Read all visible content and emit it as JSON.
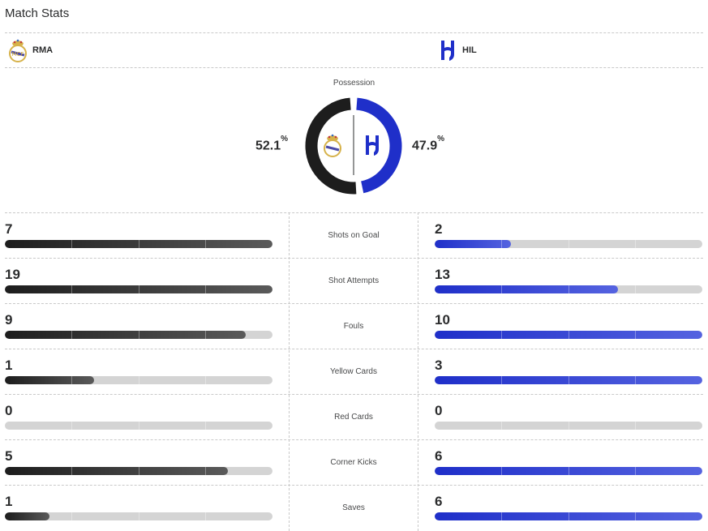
{
  "title": "Match Stats",
  "home": {
    "abbr": "RMA",
    "logo": "real-madrid-crest-icon",
    "color": "#1d1d1d"
  },
  "away": {
    "abbr": "HIL",
    "logo": "al-hilal-logo-icon",
    "color": "#1f2fc9"
  },
  "possession": {
    "label": "Possession",
    "home_value": "52.1",
    "away_value": "47.9",
    "unit": "%",
    "home_fraction": 0.521,
    "away_fraction": 0.479
  },
  "stats": [
    {
      "label": "Shots on Goal",
      "home": "7",
      "away": "2",
      "home_fraction": 1.0,
      "away_fraction": 0.286
    },
    {
      "label": "Shot Attempts",
      "home": "19",
      "away": "13",
      "home_fraction": 1.0,
      "away_fraction": 0.684
    },
    {
      "label": "Fouls",
      "home": "9",
      "away": "10",
      "home_fraction": 0.9,
      "away_fraction": 1.0
    },
    {
      "label": "Yellow Cards",
      "home": "1",
      "away": "3",
      "home_fraction": 0.333,
      "away_fraction": 1.0
    },
    {
      "label": "Red Cards",
      "home": "0",
      "away": "0",
      "home_fraction": 0,
      "away_fraction": 0
    },
    {
      "label": "Corner Kicks",
      "home": "5",
      "away": "6",
      "home_fraction": 0.833,
      "away_fraction": 1.0
    },
    {
      "label": "Saves",
      "home": "1",
      "away": "6",
      "home_fraction": 0.167,
      "away_fraction": 1.0
    }
  ]
}
